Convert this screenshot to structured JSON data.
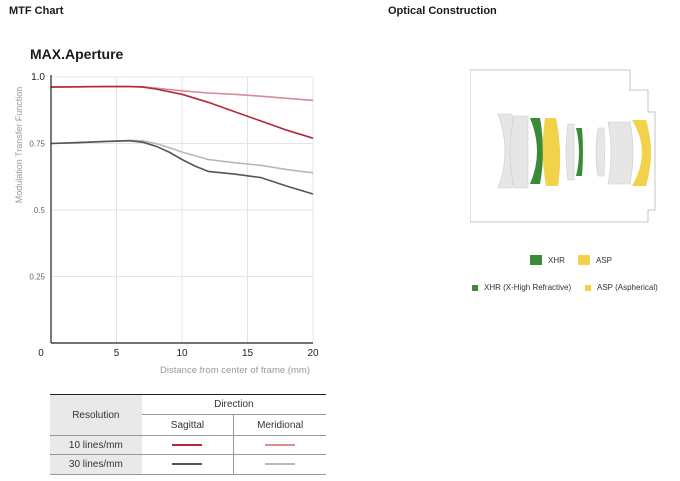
{
  "headings": {
    "mtf": "MTF Chart",
    "optical": "Optical Construction",
    "aperture": "MAX.Aperture"
  },
  "chart_data": {
    "type": "line",
    "xlabel": "Distance from center of frame (mm)",
    "ylabel": "Modulation Transfer Function",
    "xlim": [
      0,
      20
    ],
    "ylim": [
      0,
      1.0
    ],
    "x_ticks": [
      "0",
      "5",
      "10",
      "15",
      "20"
    ],
    "y_ticks": [
      {
        "value": 1.0,
        "label": "1.0"
      },
      {
        "value": 0.75,
        "label": "0.75"
      },
      {
        "value": 0.5,
        "label": "0.5"
      },
      {
        "value": 0.25,
        "label": "0.25"
      }
    ],
    "grid": true,
    "series": [
      {
        "color": "#b22a3a",
        "x": [
          0,
          2,
          4,
          6,
          7,
          8,
          10,
          12,
          14,
          16,
          18,
          20
        ],
        "y": [
          0.962,
          0.963,
          0.964,
          0.964,
          0.962,
          0.955,
          0.935,
          0.905,
          0.87,
          0.835,
          0.8,
          0.77
        ]
      },
      {
        "color": "#d98a95",
        "x": [
          0,
          2,
          4,
          6,
          7,
          8,
          10,
          12,
          14,
          16,
          18,
          20
        ],
        "y": [
          0.962,
          0.963,
          0.964,
          0.964,
          0.963,
          0.958,
          0.948,
          0.94,
          0.935,
          0.928,
          0.92,
          0.912
        ]
      },
      {
        "color": "#555555",
        "x": [
          0,
          2,
          4,
          6,
          7,
          8,
          9,
          10,
          11,
          12,
          14,
          16,
          18,
          20
        ],
        "y": [
          0.75,
          0.753,
          0.757,
          0.76,
          0.755,
          0.74,
          0.718,
          0.69,
          0.665,
          0.645,
          0.635,
          0.622,
          0.59,
          0.56
        ]
      },
      {
        "color": "#b8b8b8",
        "x": [
          0,
          2,
          4,
          6,
          7,
          8,
          9,
          10,
          12,
          14,
          16,
          18,
          20
        ],
        "y": [
          0.75,
          0.754,
          0.758,
          0.762,
          0.76,
          0.75,
          0.735,
          0.718,
          0.69,
          0.678,
          0.668,
          0.652,
          0.64
        ]
      }
    ]
  },
  "legend_table": {
    "resolution_header": "Resolution",
    "direction_header": "Direction",
    "sagittal": "Sagittal",
    "meridional": "Meridional",
    "rows": [
      {
        "label": "10 lines/mm",
        "sagittal_color": "#b22a3a",
        "meridional_color": "#d98a95"
      },
      {
        "label": "30 lines/mm",
        "sagittal_color": "#555555",
        "meridional_color": "#b8b8b8"
      }
    ]
  },
  "optical": {
    "diagram_labels": {
      "xhr": "XHR",
      "asp": "ASP"
    },
    "legend": {
      "xhr": "XHR (X-High Refractive)",
      "asp": "ASP (Aspherical)"
    },
    "colors": {
      "xhr": "#3b8a35",
      "asp": "#f2d24a",
      "glass": "#e6e6e6",
      "outline": "#c4c4c4"
    }
  }
}
